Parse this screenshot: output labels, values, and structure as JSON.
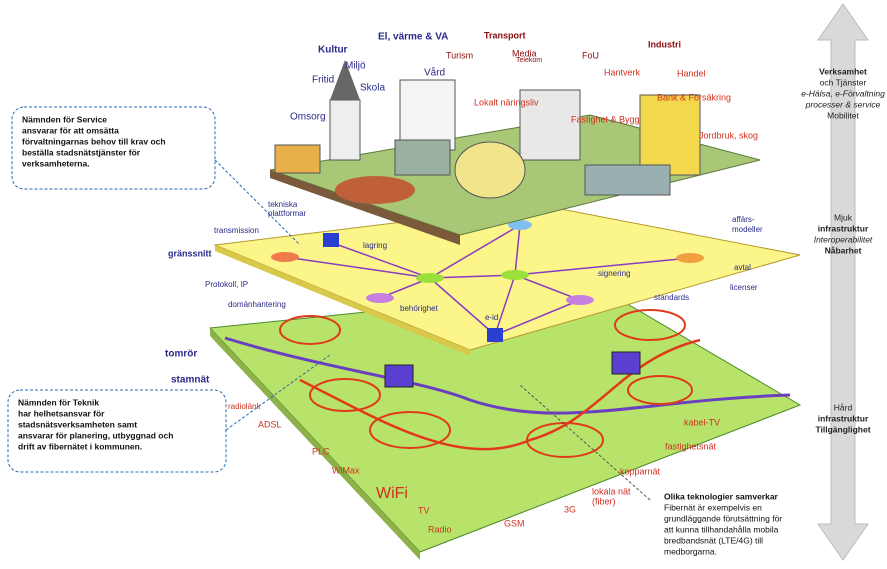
{
  "top_layer": {
    "labels": [
      "Kultur",
      "El, värme & VA",
      "Transport",
      "Industri",
      "Miljö",
      "Turism",
      "Media",
      "Telekom",
      "FoU",
      "Fritid",
      "Skola",
      "Vård",
      "Lokalt näringsliv",
      "Hantverk",
      "Handel",
      "Omsorg",
      "Fastighet & Bygg",
      "Bank & Försäkring",
      "Jordbruk, skog"
    ]
  },
  "middle_layer": {
    "labels": [
      "tekniska",
      "plattformar",
      "transmission",
      "lagring",
      "gränssnitt",
      "Protokoll, IP",
      "domänhantering",
      "behörighet",
      "e-id",
      "signering",
      "affärs-",
      "modeller",
      "avtal",
      "licenser",
      "standards"
    ]
  },
  "bottom_layer": {
    "labels": [
      "tomrör",
      "stamnät",
      "radiolänk",
      "ADSL",
      "PLC",
      "WiMax",
      "WiFi",
      "TV",
      "Radio",
      "GSM",
      "3G",
      "lokala nät",
      "(fiber)",
      "kopparnät",
      "fastighetsnät",
      "kabel-TV"
    ]
  },
  "side_labels": [
    {
      "lines": [
        "Verksamhet",
        "och Tjänster",
        "e-Hälsa, e-Förvaltning",
        "processer & service",
        "Mobilitet"
      ]
    },
    {
      "lines": [
        "Mjuk",
        "infrastruktur",
        "Interoperabilitet",
        "Nåbarhet"
      ]
    },
    {
      "lines": [
        "Hård",
        "infrastruktur",
        "Tillgänglighet"
      ]
    }
  ],
  "callouts": [
    {
      "lines": [
        "Nämnden för Service",
        "ansvarar för att omsätta",
        "förvaltningarnas behov till krav och",
        "beställa stadsnätstjänster för",
        "verksamheterna."
      ]
    },
    {
      "lines": [
        "Nämnden för Teknik",
        "har helhetsansvar för",
        "stadsnätsverksamheten samt",
        "ansvarar för planering, utbyggnad och",
        "drift av fibernätet i kommunen."
      ]
    }
  ],
  "note": {
    "lines": [
      "Olika teknologier samverkar",
      "Fibernät är exempelvis en",
      "grundläggande förutsättning för",
      "att kunna tillhandahålla mobila",
      "bredbandsnät (LTE/4G) till",
      "medborgarna."
    ]
  }
}
